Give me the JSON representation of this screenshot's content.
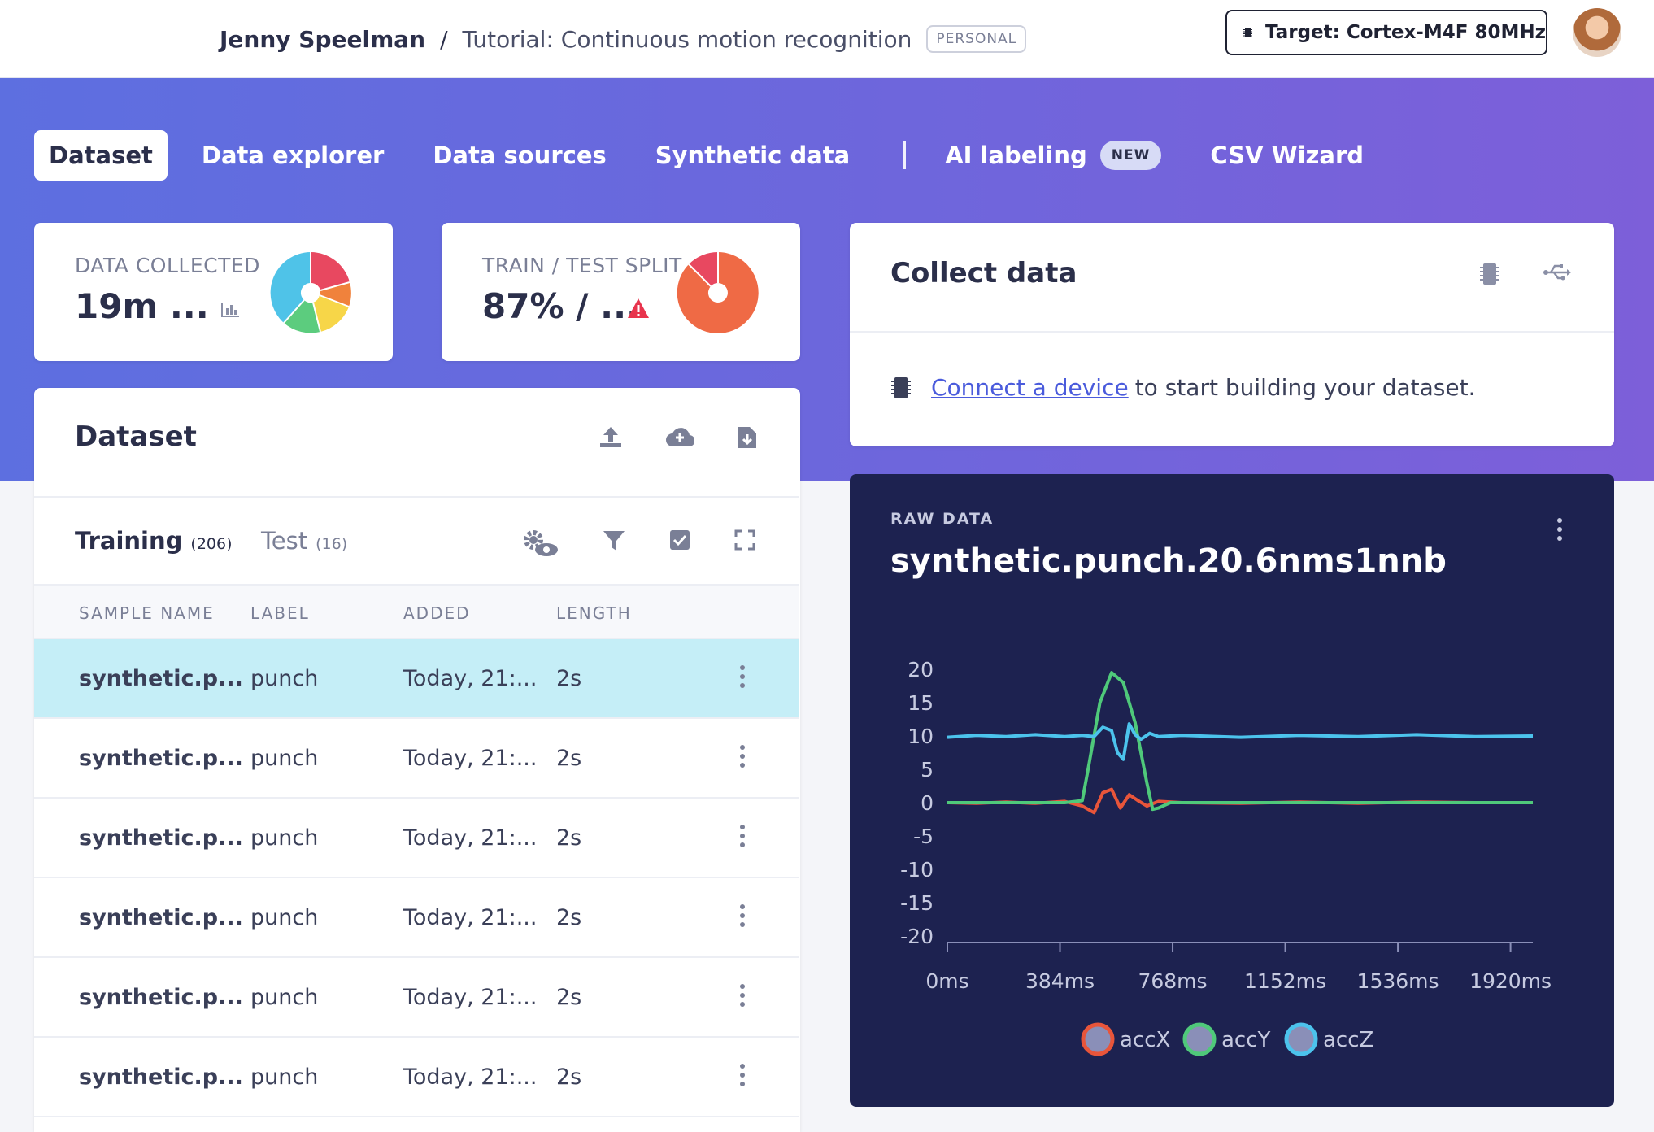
{
  "header": {
    "owner": "Jenny Speelman",
    "separator": "/",
    "project": "Tutorial: Continuous motion recognition",
    "badge": "PERSONAL",
    "target": "Target: Cortex-M4F 80MHz"
  },
  "tabs": [
    {
      "label": "Dataset",
      "active": true
    },
    {
      "label": "Data explorer"
    },
    {
      "label": "Data sources"
    },
    {
      "label": "Synthetic data"
    },
    {
      "label": "AI labeling",
      "badge": "NEW"
    },
    {
      "label": "CSV Wizard"
    }
  ],
  "stats": {
    "data_collected": {
      "label": "DATA COLLECTED",
      "value": "19m ..."
    },
    "train_test": {
      "label": "TRAIN / TEST SPLIT",
      "value": "87% / ..."
    }
  },
  "dataset": {
    "title": "Dataset",
    "subtabs": [
      {
        "label": "Training",
        "count": "(206)",
        "active": true
      },
      {
        "label": "Test",
        "count": "(16)"
      }
    ],
    "columns": [
      "SAMPLE NAME",
      "LABEL",
      "ADDED",
      "LENGTH"
    ],
    "rows": [
      {
        "name": "synthetic.p...",
        "label": "punch",
        "added": "Today, 21:...",
        "length": "2s",
        "selected": true
      },
      {
        "name": "synthetic.p...",
        "label": "punch",
        "added": "Today, 21:...",
        "length": "2s"
      },
      {
        "name": "synthetic.p...",
        "label": "punch",
        "added": "Today, 21:...",
        "length": "2s"
      },
      {
        "name": "synthetic.p...",
        "label": "punch",
        "added": "Today, 21:...",
        "length": "2s"
      },
      {
        "name": "synthetic.p...",
        "label": "punch",
        "added": "Today, 21:...",
        "length": "2s"
      },
      {
        "name": "synthetic.p...",
        "label": "punch",
        "added": "Today, 21:...",
        "length": "2s"
      }
    ]
  },
  "collect": {
    "title": "Collect data",
    "link": "Connect a device",
    "message": "to start building your dataset."
  },
  "raw": {
    "label": "RAW DATA",
    "title": "synthetic.punch.20.6nms1nnb"
  },
  "colors": {
    "accent": "#5d6fe0",
    "accX": "#e8553a",
    "accY": "#4fc97a",
    "accZ": "#4cc3ec",
    "selected_row": "#c5eef7",
    "pie1": [
      "#e84860",
      "#f0823c",
      "#f7d648",
      "#5ccc7e",
      "#4fc3e8"
    ],
    "pie2": [
      "#ef6a45",
      "#e84860"
    ]
  },
  "chart_data": {
    "type": "line",
    "title": "synthetic.punch.20.6nms1nnb",
    "xlabel": "",
    "ylabel": "",
    "xlim": [
      0,
      1996
    ],
    "ylim": [
      -20,
      20
    ],
    "x_ticks": [
      "0ms",
      "384ms",
      "768ms",
      "1152ms",
      "1536ms",
      "1920ms"
    ],
    "x_tick_values": [
      0,
      384,
      768,
      1152,
      1536,
      1920
    ],
    "y_ticks": [
      20,
      15,
      10,
      5,
      0,
      -5,
      -10,
      -15,
      -20
    ],
    "legend": "bottom",
    "series": [
      {
        "name": "accX",
        "color": "#e8553a",
        "x": [
          0,
          100,
          200,
          300,
          400,
          460,
          500,
          530,
          560,
          590,
          620,
          650,
          680,
          720,
          800,
          1000,
          1200,
          1400,
          1600,
          1800,
          1996
        ],
        "y": [
          0,
          -0.1,
          0.1,
          -0.1,
          0.2,
          -0.5,
          -1.5,
          1.5,
          2,
          -0.8,
          1.2,
          0.3,
          -0.5,
          0.2,
          0,
          -0.1,
          0.1,
          -0.1,
          0.1,
          0,
          0
        ]
      },
      {
        "name": "accY",
        "color": "#4fc97a",
        "x": [
          0,
          200,
          400,
          460,
          480,
          520,
          560,
          600,
          640,
          680,
          700,
          720,
          760,
          1000,
          1400,
          1996
        ],
        "y": [
          0,
          0,
          0,
          0.3,
          5,
          15,
          19.5,
          18,
          12,
          3,
          -1,
          -0.8,
          0,
          0,
          0,
          0
        ],
        "note_y_start": 0.2
      },
      {
        "name": "accZ",
        "color": "#4cc3ec",
        "x": [
          0,
          100,
          200,
          300,
          400,
          460,
          500,
          530,
          560,
          580,
          600,
          620,
          640,
          660,
          690,
          720,
          800,
          1000,
          1200,
          1400,
          1600,
          1800,
          1996
        ],
        "y": [
          9.8,
          10.1,
          9.9,
          10.2,
          9.9,
          10.1,
          9.9,
          11.3,
          10.8,
          7.5,
          6.5,
          11.8,
          10.2,
          9.5,
          10.4,
          9.9,
          10.1,
          9.8,
          10.1,
          9.9,
          10.2,
          9.9,
          10
        ]
      }
    ]
  }
}
